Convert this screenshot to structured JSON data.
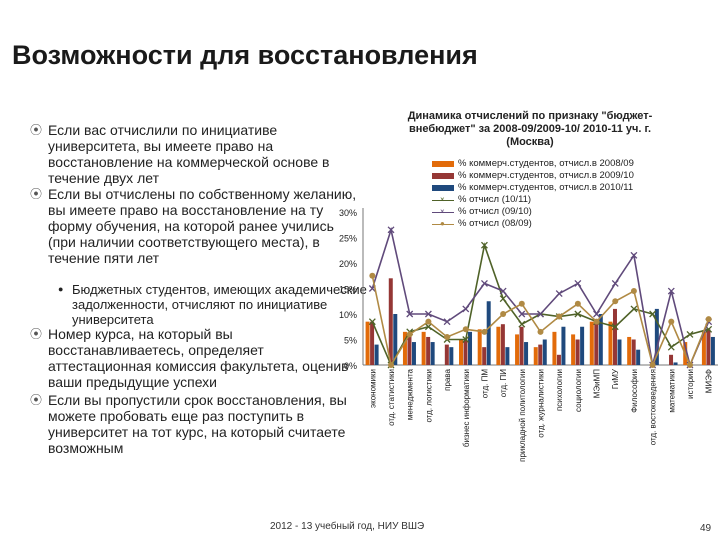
{
  "slide": {
    "title": "Возможности для восстановления",
    "footer": "2012 - 13 учебный год, НИУ ВШЭ",
    "page_number": "49"
  },
  "bullets": [
    {
      "text": "Если вас отчислили по инициативе университета, вы имеете право на восстановление на коммерческой основе в течение двух лет"
    },
    {
      "text": "Если вы отчислены по собственному желанию, вы имеете право на восстановление на ту форму обучения, на которой ранее учились (при наличии соответствующего места), в течение пяти лет"
    },
    {
      "text": "Бюджетных студентов, имеющих академические задолженности, отчисляют по инициативе университета",
      "sub": true
    },
    {
      "text": "Номер курса, на который вы восстанавливаетесь, определяет аттестационная комиссия факультета, оценив ваши предыдущие успехи"
    },
    {
      "text": "Если вы пропустили срок восстановления, вы можете пробовать еще раз поступить в университет на тот курс, на который считаете возможным"
    }
  ],
  "chart_data": {
    "type": "bar",
    "title": "Динамика отчислений по признаку \"бюджет-внебюджет\" за 2008-09/2009-10/ 2010-11 уч. г. (Москва)",
    "categories": [
      "экономики",
      "отд. статистики",
      "менеджмента",
      "отд. логистики",
      "права",
      "бизнес информатики",
      "отд. ПМ",
      "отд. ПИ",
      "прикладной политологии",
      "отд. журналистики",
      "психологии",
      "социологии",
      "МЭиМП",
      "ГиМУ",
      "Философии",
      "отд. востоковедения",
      "математики",
      "истории",
      "МИЭФ"
    ],
    "ylim": [
      0,
      30
    ],
    "yticks": [
      "0%",
      "5%",
      "10%",
      "15%",
      "20%",
      "25%",
      "30%"
    ],
    "bar_series": [
      {
        "name": "% коммерч.студентов, отчисл.в 2008/09",
        "color": "#e26b0a",
        "values": [
          8.5,
          0,
          6.5,
          6.5,
          0,
          5,
          7,
          7.5,
          6,
          3.5,
          6.5,
          6,
          8.5,
          8.5,
          5.5,
          0,
          0,
          4.5,
          6.5
        ]
      },
      {
        "name": "% коммерч.студентов, отчисл.в 2009/10",
        "color": "#953735",
        "values": [
          8.5,
          17,
          5.5,
          5.5,
          4,
          5,
          3.5,
          8,
          7.5,
          4,
          2,
          5,
          9,
          11,
          5,
          0,
          2,
          0,
          7
        ]
      },
      {
        "name": "% коммерч.студентов, отчисл.в 2010/11",
        "color": "#1f497d",
        "values": [
          4,
          10,
          4.5,
          4.5,
          3.5,
          6.5,
          12.5,
          3.5,
          4.5,
          5,
          7.5,
          7.5,
          10,
          5,
          3,
          11,
          0.5,
          0,
          5.5
        ]
      }
    ],
    "line_series": [
      {
        "name": "% отчисл (10/11)",
        "color": "#4f6228",
        "marker": "x",
        "values": [
          8.5,
          0,
          6.5,
          7.5,
          5,
          5,
          23.5,
          13,
          8,
          10,
          9.5,
          10,
          8.5,
          7.5,
          11,
          10,
          3.5,
          6,
          7
        ]
      },
      {
        "name": "% отчисл (09/10)",
        "color": "#604a7b",
        "marker": "x",
        "values": [
          15,
          26.5,
          10,
          10,
          8.5,
          11,
          16,
          14.5,
          10,
          10,
          14,
          16,
          10,
          16,
          21.5,
          0,
          14.5,
          0,
          8.5
        ]
      },
      {
        "name": "% отчисл (08/09)",
        "color": "#b08a44",
        "marker": "o",
        "values": [
          17.5,
          0,
          6,
          8.5,
          5.5,
          7,
          6.5,
          10,
          12,
          6.5,
          9.5,
          12,
          8.5,
          12.5,
          14.5,
          0,
          8.5,
          0,
          9
        ]
      }
    ]
  }
}
